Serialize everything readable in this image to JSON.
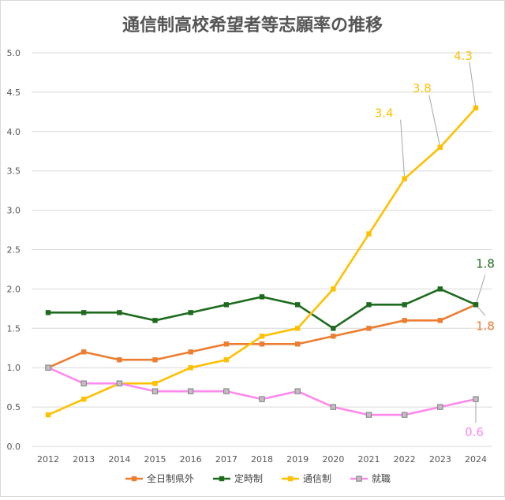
{
  "chart_data": {
    "type": "line",
    "title": "通信制高校希望者等志願率の推移",
    "xlabel": "",
    "ylabel": "",
    "ylim": [
      0,
      5
    ],
    "yticks": [
      "0.0",
      "0.5",
      "1.0",
      "1.5",
      "2.0",
      "2.5",
      "3.0",
      "3.5",
      "4.0",
      "4.5",
      "5.0"
    ],
    "ytick_values": [
      0,
      0.5,
      1.0,
      1.5,
      2.0,
      2.5,
      3.0,
      3.5,
      4.0,
      4.5,
      5.0
    ],
    "grid": true,
    "legend_position": "bottom",
    "categories": [
      "2012",
      "2013",
      "2014",
      "2015",
      "2016",
      "2017",
      "2018",
      "2019",
      "2020",
      "2021",
      "2022",
      "2023",
      "2024"
    ],
    "series": [
      {
        "name": "全日制県外",
        "color": "#ED7D31",
        "marker": "square",
        "values": [
          1.0,
          1.2,
          1.1,
          1.1,
          1.2,
          1.3,
          1.3,
          1.3,
          1.4,
          1.5,
          1.6,
          1.6,
          1.8
        ]
      },
      {
        "name": "定時制",
        "color": "#1E6B1E",
        "marker": "square",
        "values": [
          1.7,
          1.7,
          1.7,
          1.6,
          1.7,
          1.8,
          1.9,
          1.8,
          1.5,
          1.8,
          1.8,
          2.0,
          1.8
        ]
      },
      {
        "name": "通信制",
        "color": "#FFC000",
        "marker": "square",
        "values": [
          0.4,
          0.6,
          0.8,
          0.8,
          1.0,
          1.1,
          1.4,
          1.5,
          2.0,
          2.7,
          3.4,
          3.8,
          4.3
        ]
      },
      {
        "name": "就職",
        "color": "#FF88EE",
        "marker": "square-hollow",
        "marker_fill": "#BFBFBF",
        "marker_stroke": "#808080",
        "values": [
          1.0,
          0.8,
          0.8,
          0.7,
          0.7,
          0.7,
          0.6,
          0.7,
          0.5,
          0.4,
          0.4,
          0.5,
          0.6
        ]
      }
    ],
    "annotations": [
      {
        "series": 2,
        "index": 10,
        "text": "3.4",
        "color": "#FFC000"
      },
      {
        "series": 2,
        "index": 11,
        "text": "3.8",
        "color": "#FFC000"
      },
      {
        "series": 2,
        "index": 12,
        "text": "4.3",
        "color": "#FFC000"
      },
      {
        "series": 1,
        "index": 12,
        "text": "1.8",
        "color": "#1E6B1E"
      },
      {
        "series": 0,
        "index": 12,
        "text": "1.8",
        "color": "#ED7D31"
      },
      {
        "series": 3,
        "index": 12,
        "text": "0.6",
        "color": "#FF88EE"
      }
    ],
    "leader_color": "#A6A6A6"
  }
}
